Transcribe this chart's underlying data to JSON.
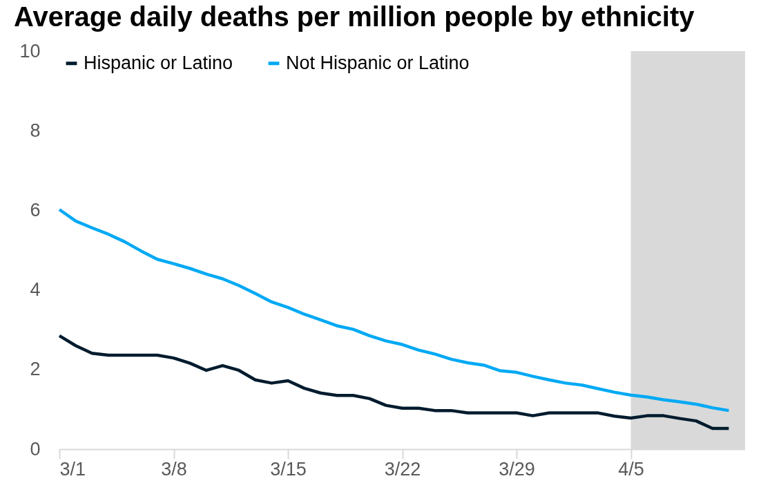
{
  "chart_data": {
    "type": "line",
    "title": "Average daily deaths per million people by ethnicity",
    "x": [
      "--03-01",
      "--03-02",
      "--03-03",
      "--03-04",
      "--03-05",
      "--03-06",
      "--03-07",
      "--03-08",
      "--03-09",
      "--03-10",
      "--03-11",
      "--03-12",
      "--03-13",
      "--03-14",
      "--03-15",
      "--03-16",
      "--03-17",
      "--03-18",
      "--03-19",
      "--03-20",
      "--03-21",
      "--03-22",
      "--03-23",
      "--03-24",
      "--03-25",
      "--03-26",
      "--03-27",
      "--03-28",
      "--03-29",
      "--03-30",
      "--03-31",
      "--04-01",
      "--04-02",
      "--04-03",
      "--04-04",
      "--04-05",
      "--04-06",
      "--04-07",
      "--04-08",
      "--04-09",
      "--04-10",
      "--04-11"
    ],
    "series": [
      {
        "name": "Hispanic or Latino",
        "color": "#001b2e",
        "values": [
          2.85,
          2.6,
          2.41,
          2.36,
          2.36,
          2.36,
          2.36,
          2.29,
          2.16,
          1.98,
          2.1,
          1.98,
          1.74,
          1.66,
          1.72,
          1.53,
          1.41,
          1.35,
          1.35,
          1.27,
          1.1,
          1.03,
          1.03,
          0.97,
          0.97,
          0.91,
          0.91,
          0.91,
          0.91,
          0.84,
          0.91,
          0.91,
          0.91,
          0.91,
          0.83,
          0.78,
          0.84,
          0.84,
          0.77,
          0.71,
          0.52,
          0.52
        ]
      },
      {
        "name": "Not Hispanic or Latino",
        "color": "#00a9f4",
        "values": [
          6.02,
          5.73,
          5.56,
          5.4,
          5.21,
          4.98,
          4.77,
          4.66,
          4.54,
          4.4,
          4.28,
          4.11,
          3.91,
          3.7,
          3.56,
          3.39,
          3.25,
          3.1,
          3.01,
          2.85,
          2.72,
          2.63,
          2.49,
          2.39,
          2.26,
          2.17,
          2.11,
          1.97,
          1.93,
          1.83,
          1.74,
          1.66,
          1.61,
          1.52,
          1.43,
          1.36,
          1.31,
          1.24,
          1.19,
          1.13,
          1.04,
          0.97
        ]
      }
    ],
    "xlim": [
      "--03-01",
      "--04-12"
    ],
    "xticks": [
      {
        "value": "--03-01",
        "label": "3/1"
      },
      {
        "value": "--03-08",
        "label": "3/8"
      },
      {
        "value": "--03-15",
        "label": "3/15"
      },
      {
        "value": "--03-22",
        "label": "3/22"
      },
      {
        "value": "--03-29",
        "label": "3/29"
      },
      {
        "value": "--04-05",
        "label": "4/5"
      }
    ],
    "ylim": [
      0,
      10
    ],
    "yticks": [
      0,
      2,
      4,
      6,
      8,
      10
    ],
    "bands": [
      {
        "axis": "x",
        "from": "--04-05",
        "to": "--04-12",
        "color": "#d9d9d9"
      }
    ],
    "grid": false,
    "legend": "top left"
  }
}
